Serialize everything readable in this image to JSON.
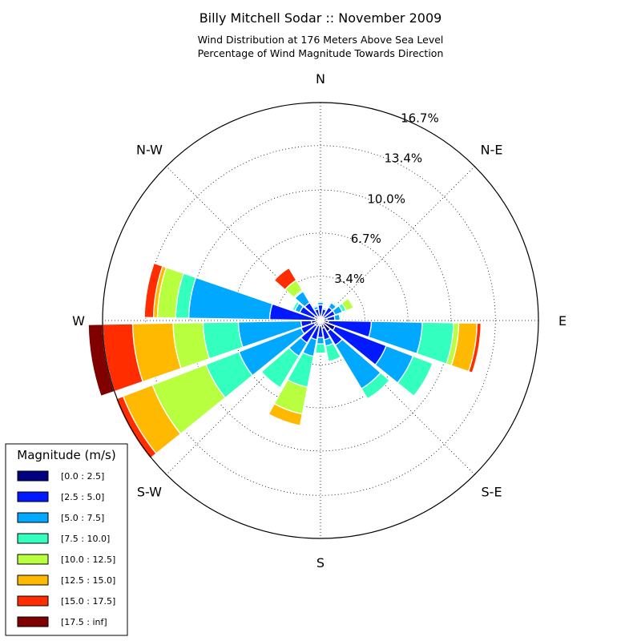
{
  "chart_data": {
    "type": "windrose",
    "title": "Billy Mitchell Sodar :: November 2009",
    "subtitle_lines": [
      "Wind Distribution at 176 Meters Above Sea Level",
      "Percentage of Wind Magnitude Towards Direction"
    ],
    "direction_labels": [
      "N",
      "N-E",
      "E",
      "S-E",
      "S",
      "S-W",
      "W",
      "N-W"
    ],
    "radial_ticks": [
      {
        "value": 3.4,
        "label": "3.4%"
      },
      {
        "value": 6.7,
        "label": "6.7%"
      },
      {
        "value": 10.0,
        "label": "10.0%"
      },
      {
        "value": 13.4,
        "label": "13.4%"
      },
      {
        "value": 16.7,
        "label": "16.7%"
      }
    ],
    "rmax": 16.7,
    "grid": true,
    "sector_width_deg": 18,
    "legend": {
      "title": "Magnitude (m/s)",
      "position": "bottom-left",
      "bins": [
        {
          "label": "[0.0 : 2.5]",
          "color": "#000080"
        },
        {
          "label": "[2.5 : 5.0]",
          "color": "#0019ff"
        },
        {
          "label": "[5.0 : 7.5]",
          "color": "#00a9ff"
        },
        {
          "label": "[7.5 : 10.0]",
          "color": "#33ffbf"
        },
        {
          "label": "[10.0 : 12.5]",
          "color": "#b7ff3f"
        },
        {
          "label": "[12.5 : 15.0]",
          "color": "#ffb900"
        },
        {
          "label": "[15.0 : 17.5]",
          "color": "#ff2d00"
        },
        {
          "label": "[17.5 : inf]",
          "color": "#800000"
        }
      ]
    },
    "sectors": [
      {
        "direction_deg": 0,
        "cumulative": [
          0.3,
          1.2,
          1.4,
          1.5,
          1.5,
          1.5,
          1.5,
          1.5
        ]
      },
      {
        "direction_deg": 20,
        "cumulative": [
          0.3,
          0.9,
          1.0,
          1.0,
          1.0,
          1.0,
          1.0,
          1.0
        ]
      },
      {
        "direction_deg": 40,
        "cumulative": [
          0.3,
          1.2,
          1.6,
          1.7,
          1.7,
          1.7,
          1.7,
          1.7
        ]
      },
      {
        "direction_deg": 60,
        "cumulative": [
          0.3,
          1.2,
          1.8,
          2.1,
          2.7,
          2.7,
          2.7,
          2.7
        ]
      },
      {
        "direction_deg": 80,
        "cumulative": [
          0.5,
          1.1,
          1.5,
          1.6,
          1.6,
          1.6,
          1.6,
          1.6
        ]
      },
      {
        "direction_deg": 100,
        "cumulative": [
          0.6,
          3.9,
          7.8,
          10.2,
          10.6,
          12.0,
          12.3,
          12.3
        ]
      },
      {
        "direction_deg": 120,
        "cumulative": [
          1.2,
          5.4,
          7.6,
          9.2,
          9.2,
          9.2,
          9.2,
          9.2
        ]
      },
      {
        "direction_deg": 140,
        "cumulative": [
          1.0,
          2.2,
          6.1,
          7.0,
          7.0,
          7.0,
          7.0,
          7.0
        ]
      },
      {
        "direction_deg": 160,
        "cumulative": [
          0.6,
          1.5,
          2.0,
          3.2,
          3.2,
          3.2,
          3.2,
          3.2
        ]
      },
      {
        "direction_deg": 180,
        "cumulative": [
          0.4,
          1.3,
          1.8,
          2.5,
          2.5,
          2.5,
          2.5,
          2.5
        ]
      },
      {
        "direction_deg": 200,
        "cumulative": [
          0.4,
          1.5,
          2.8,
          5.2,
          7.3,
          8.2,
          8.2,
          8.2
        ]
      },
      {
        "direction_deg": 220,
        "cumulative": [
          0.5,
          2.0,
          3.2,
          6.0,
          6.0,
          6.0,
          6.0,
          6.0
        ]
      },
      {
        "direction_deg": 240,
        "cumulative": [
          0.5,
          1.6,
          6.7,
          9.4,
          13.8,
          16.2,
          16.8,
          16.8
        ]
      },
      {
        "direction_deg": 260,
        "cumulative": [
          0.7,
          1.5,
          6.3,
          9.0,
          11.3,
          14.4,
          16.7,
          17.8
        ]
      },
      {
        "direction_deg": 280,
        "cumulative": [
          0.4,
          3.9,
          10.1,
          11.1,
          12.5,
          12.8,
          13.5,
          13.5
        ]
      },
      {
        "direction_deg": 300,
        "cumulative": [
          0.5,
          1.7,
          2.1,
          2.3,
          2.3,
          2.3,
          2.3,
          2.3
        ]
      },
      {
        "direction_deg": 320,
        "cumulative": [
          0.4,
          1.6,
          2.6,
          2.7,
          3.6,
          3.6,
          4.7,
          4.7
        ]
      },
      {
        "direction_deg": 340,
        "cumulative": [
          0.3,
          0.9,
          1.1,
          1.2,
          1.2,
          1.2,
          1.2,
          1.2
        ]
      }
    ]
  }
}
